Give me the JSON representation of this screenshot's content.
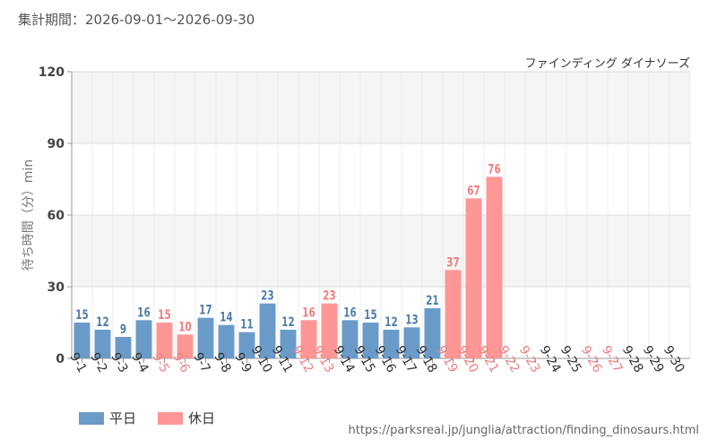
{
  "header": {
    "period": "集計期間：2026-09-01〜2026-09-30"
  },
  "footer": {
    "url": "https://parksreal.jp/junglia/attraction/finding_dinosaurs.html"
  },
  "legend": {
    "weekday": "平日",
    "holiday": "休日"
  },
  "colors": {
    "weekday_bar": "#6a9bc8",
    "holiday_bar": "#ff9696",
    "weekday_text": "#4f7eab",
    "holiday_text": "#f07e7e"
  },
  "chart_data": {
    "type": "bar",
    "title": "ファインディング ダイナソーズ",
    "ylabel": "待ち時間（分）min",
    "ylim": [
      0,
      120
    ],
    "yticks": [
      0,
      30,
      60,
      90,
      120
    ],
    "grid": true,
    "legend_position": "bottom-left",
    "categories": [
      "9-1",
      "9-2",
      "9-3",
      "9-4",
      "9-5",
      "9-6",
      "9-7",
      "9-8",
      "9-9",
      "9-10",
      "9-11",
      "9-12",
      "9-13",
      "9-14",
      "9-15",
      "9-16",
      "9-17",
      "9-18",
      "9-19",
      "9-20",
      "9-21",
      "9-22",
      "9-23",
      "9-24",
      "9-25",
      "9-26",
      "9-27",
      "9-28",
      "9-29",
      "9-30"
    ],
    "day_types": [
      "weekday",
      "weekday",
      "weekday",
      "weekday",
      "holiday",
      "holiday",
      "weekday",
      "weekday",
      "weekday",
      "weekday",
      "weekday",
      "holiday",
      "holiday",
      "weekday",
      "weekday",
      "weekday",
      "weekday",
      "weekday",
      "holiday",
      "holiday",
      "holiday",
      "holiday",
      "holiday",
      "weekday",
      "weekday",
      "holiday",
      "holiday",
      "weekday",
      "weekday",
      "weekday"
    ],
    "values": [
      15,
      12,
      9,
      16,
      15,
      10,
      17,
      14,
      11,
      23,
      12,
      16,
      23,
      16,
      15,
      12,
      13,
      21,
      37,
      67,
      76,
      null,
      null,
      null,
      null,
      null,
      null,
      null,
      null,
      null
    ]
  }
}
